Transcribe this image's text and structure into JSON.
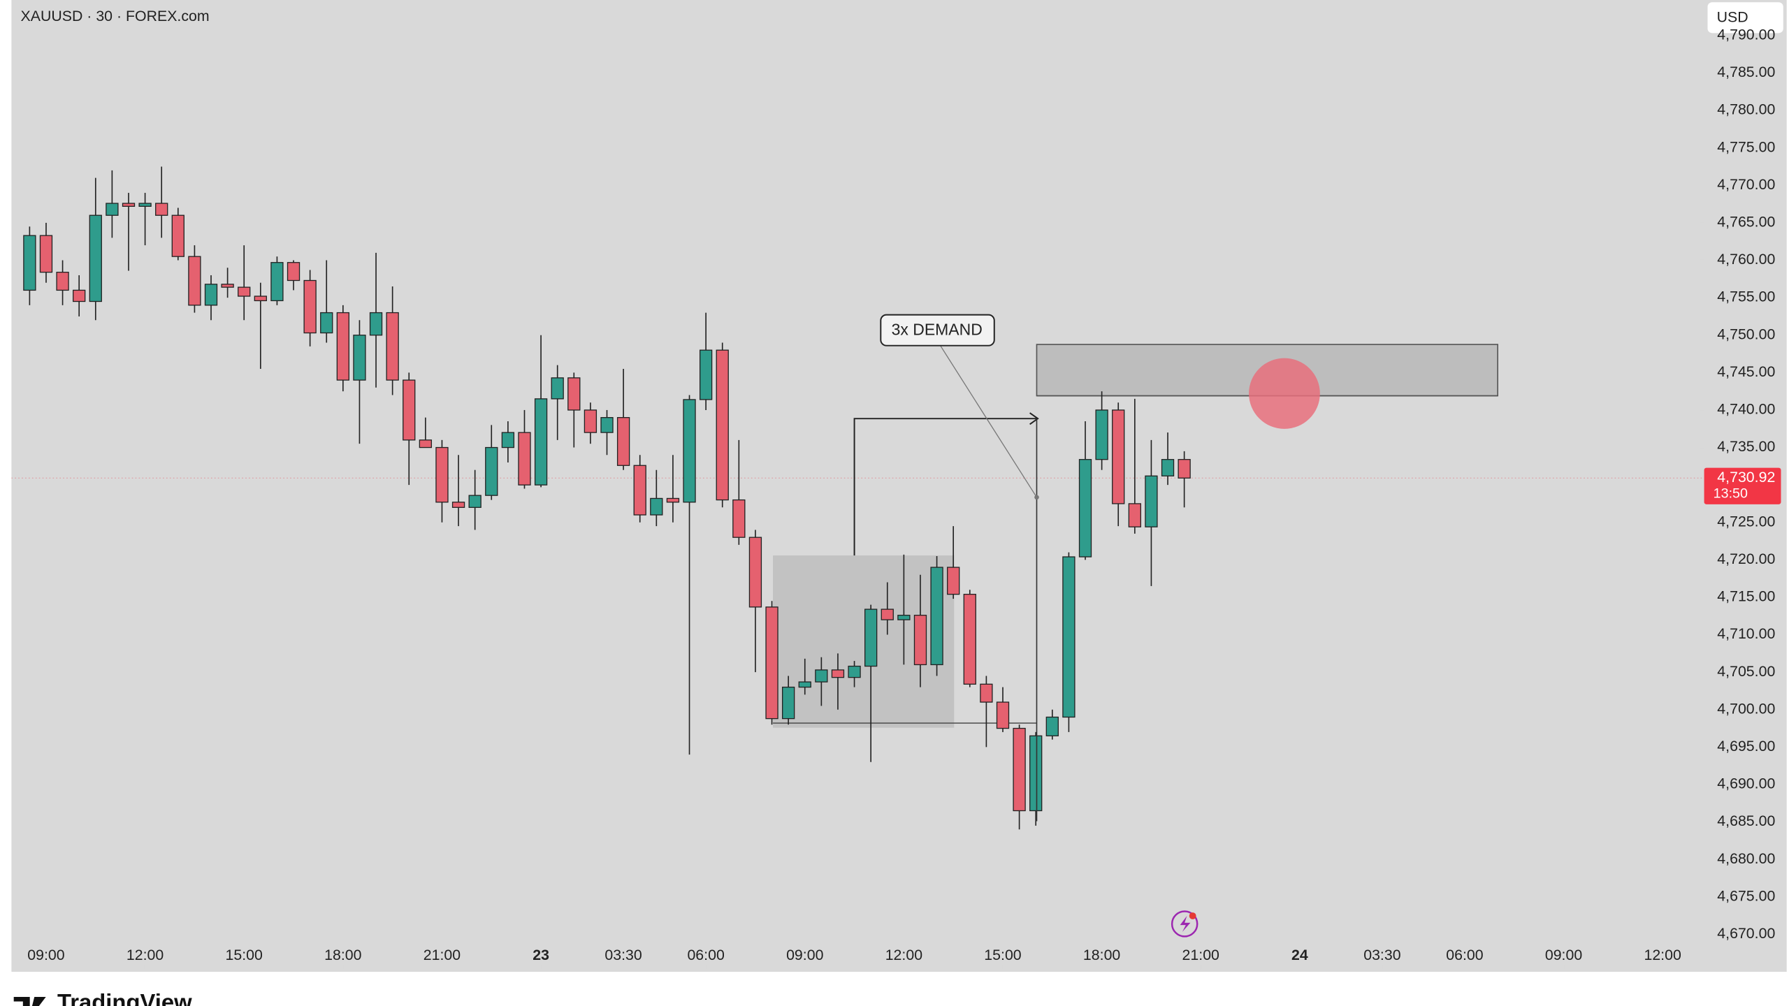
{
  "chart_data": {
    "type": "candlestick",
    "title": "XAUUSD · 30 · FOREX.com",
    "currency": "USD",
    "brand": "TradingView",
    "annotation": "3x DEMAND",
    "up_color": "#2f9c8c",
    "down_color": "#e5616f",
    "open": [
      4756,
      4763.3,
      4758.4,
      4756,
      4754.5,
      4766,
      4767.6,
      4767.2,
      4767.6,
      4766,
      4760.5,
      4754,
      4756.8,
      4756.4,
      4755.2,
      4754.6,
      4759.7,
      4757.3,
      4750.3,
      4753,
      4744,
      4750,
      4753,
      4744,
      4736,
      4735,
      4727.7,
      4727,
      4728.6,
      4735,
      4737,
      4730,
      4741.5,
      4744.3,
      4740,
      4737,
      4739,
      4732.6,
      4726,
      4728.2,
      4727.7,
      4741.4,
      4748,
      4728,
      4723,
      4713.7,
      4698.8,
      4703,
      4703.7,
      4705.3,
      4704.3,
      4705.8,
      4713.4,
      4712,
      4712.6,
      4706,
      4719,
      4715.4,
      4703.4,
      4701,
      4697.5,
      4686.5,
      4696.5,
      4699,
      4720.4,
      4733.4,
      4740,
      4727.5,
      4724.4,
      4731.2,
      4733.4
    ],
    "high": [
      4764.5,
      4765,
      4760,
      4758,
      4771,
      4772,
      4769,
      4769,
      4772.5,
      4767,
      4762,
      4758,
      4759,
      4762,
      4757,
      4760.5,
      4760,
      4758.7,
      4760,
      4754,
      4752,
      4761,
      4756.5,
      4745,
      4739,
      4736,
      4734,
      4732,
      4738,
      4738.5,
      4740,
      4750,
      4746,
      4745,
      4741,
      4740,
      4745.5,
      4734,
      4732,
      4734,
      4742,
      4753,
      4749,
      4736,
      4724,
      4714.5,
      4704.5,
      4706.8,
      4707,
      4707.5,
      4706.5,
      4714,
      4717,
      4720.7,
      4718,
      4720.5,
      4724.5,
      4716,
      4704.5,
      4703,
      4698,
      4697,
      4700,
      4721,
      4738.5,
      4742.5,
      4741,
      4741.5,
      4736,
      4737,
      4734.5
    ],
    "low": [
      4754,
      4757,
      4754,
      4752.5,
      4752,
      4763,
      4758.6,
      4762,
      4763,
      4760,
      4753,
      4752,
      4755,
      4752,
      4745.5,
      4754,
      4756,
      4748.5,
      4749,
      4742.5,
      4735.5,
      4743,
      4742,
      4730,
      4735,
      4725,
      4724.5,
      4724,
      4728,
      4733,
      4729.5,
      4729.7,
      4736,
      4735,
      4735.5,
      4734,
      4732,
      4725,
      4724.5,
      4725,
      4694,
      4740,
      4727,
      4722,
      4705,
      4698,
      4698,
      4702,
      4700.5,
      4700,
      4703,
      4693,
      4710,
      4706,
      4703,
      4704.5,
      4714.8,
      4703,
      4695,
      4697,
      4684,
      4684.5,
      4696,
      4697,
      4720,
      4732,
      4724.5,
      4723.5,
      4716.5,
      4730,
      4727
    ],
    "close": [
      4763.3,
      4758.4,
      4756,
      4754.5,
      4766,
      4767.6,
      4767.2,
      4767.6,
      4766,
      4760.5,
      4754,
      4756.8,
      4756.4,
      4755.2,
      4754.6,
      4759.7,
      4757.3,
      4750.3,
      4753,
      4744,
      4750,
      4753,
      4744,
      4736,
      4735,
      4727.7,
      4727,
      4728.6,
      4735,
      4737,
      4730,
      4741.5,
      4744.3,
      4740,
      4737,
      4739,
      4732.6,
      4726,
      4728.2,
      4727.7,
      4741.4,
      4748,
      4728,
      4723,
      4713.7,
      4698.8,
      4703,
      4703.7,
      4705.3,
      4704.3,
      4705.8,
      4713.4,
      4712,
      4712.6,
      4706,
      4719,
      4715.4,
      4703.4,
      4701,
      4697.5,
      4686.5,
      4696.5,
      4699,
      4720.4,
      4733.4,
      4740,
      4727.5,
      4724.4,
      4731.2,
      4733.4,
      4730.92
    ],
    "last_price": {
      "value": 4730.92,
      "label": "4,730.92"
    },
    "countdown": "13:50",
    "xlim": [
      -1.1,
      101.1
    ],
    "xticks": [
      {
        "value": 1,
        "label": "09:00"
      },
      {
        "value": 7,
        "label": "12:00"
      },
      {
        "value": 13,
        "label": "15:00"
      },
      {
        "value": 19,
        "label": "18:00"
      },
      {
        "value": 25,
        "label": "21:00"
      },
      {
        "value": 31,
        "label": "23"
      },
      {
        "value": 36,
        "label": "03:30"
      },
      {
        "value": 41,
        "label": "06:00"
      },
      {
        "value": 47,
        "label": "09:00"
      },
      {
        "value": 53,
        "label": "12:00"
      },
      {
        "value": 59,
        "label": "15:00"
      },
      {
        "value": 65,
        "label": "18:00"
      },
      {
        "value": 71,
        "label": "21:00"
      },
      {
        "value": 77,
        "label": "24"
      },
      {
        "value": 82,
        "label": "03:30"
      },
      {
        "value": 87,
        "label": "06:00"
      },
      {
        "value": 93,
        "label": "09:00"
      },
      {
        "value": 99,
        "label": "12:00"
      }
    ],
    "ylim": [
      4665.3,
      4794.75
    ],
    "yticks": [
      {
        "value": 4670,
        "label": "4,670.00"
      },
      {
        "value": 4675,
        "label": "4,675.00"
      },
      {
        "value": 4680,
        "label": "4,680.00"
      },
      {
        "value": 4685,
        "label": "4,685.00"
      },
      {
        "value": 4690,
        "label": "4,690.00"
      },
      {
        "value": 4695,
        "label": "4,695.00"
      },
      {
        "value": 4700,
        "label": "4,700.00"
      },
      {
        "value": 4705,
        "label": "4,705.00"
      },
      {
        "value": 4710,
        "label": "4,710.00"
      },
      {
        "value": 4715,
        "label": "4,715.00"
      },
      {
        "value": 4720,
        "label": "4,720.00"
      },
      {
        "value": 4725,
        "label": "4,725.00"
      },
      {
        "value": 4730,
        "label": "4,730.00"
      },
      {
        "value": 4735,
        "label": "4,735.00"
      },
      {
        "value": 4740,
        "label": "4,740.00"
      },
      {
        "value": 4745,
        "label": "4,745.00"
      },
      {
        "value": 4750,
        "label": "4,750.00"
      },
      {
        "value": 4755,
        "label": "4,755.00"
      },
      {
        "value": 4760,
        "label": "4,760.00"
      },
      {
        "value": 4765,
        "label": "4,765.00"
      },
      {
        "value": 4770,
        "label": "4,770.00"
      },
      {
        "value": 4775,
        "label": "4,775.00"
      },
      {
        "value": 4780,
        "label": "4,780.00"
      },
      {
        "value": 4785,
        "label": "4,785.00"
      },
      {
        "value": 4790,
        "label": "4,790.00"
      }
    ]
  }
}
